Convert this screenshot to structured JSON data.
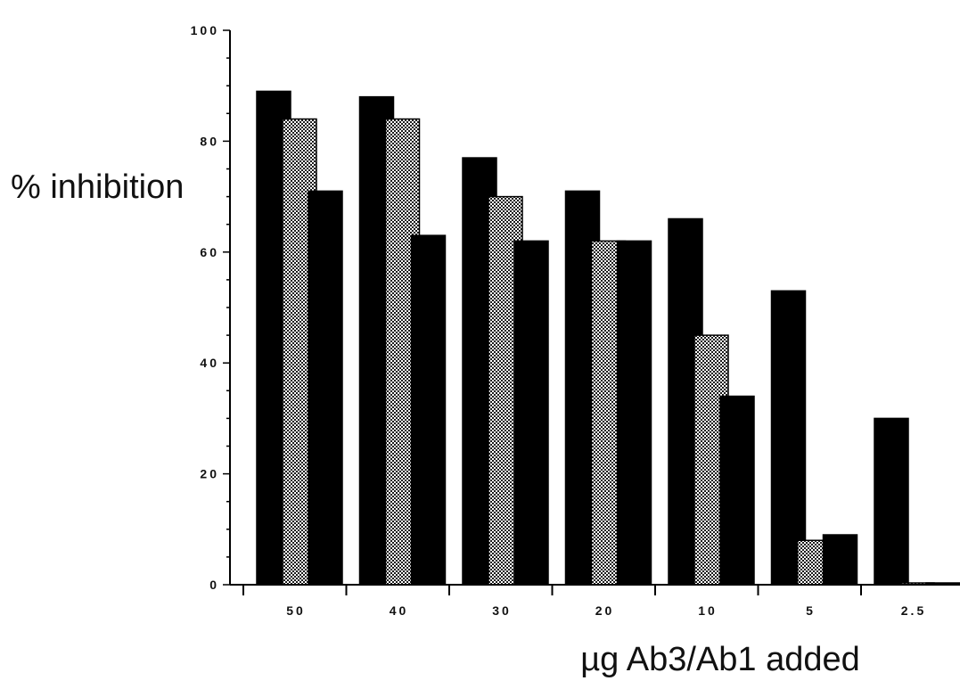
{
  "chart_data": {
    "type": "bar",
    "title": "",
    "xlabel": "µg Ab3/Ab1 added",
    "ylabel": "% inhibition",
    "categories": [
      "50",
      "40",
      "30",
      "20",
      "10",
      "5",
      "2.5"
    ],
    "ylim": [
      0,
      100
    ],
    "yticks": [
      "0",
      "20",
      "40",
      "60",
      "80",
      "100"
    ],
    "grid": false,
    "legend": "none",
    "series": [
      {
        "pattern": "solid",
        "color": "#000000",
        "values": [
          89,
          88,
          77,
          71,
          66,
          53,
          30
        ]
      },
      {
        "pattern": "dotted",
        "color": "#8c8c8c",
        "values": [
          84,
          84,
          70,
          62,
          45,
          8,
          0
        ]
      },
      {
        "pattern": "solid",
        "color": "#000000",
        "values": [
          71,
          63,
          62,
          62,
          34,
          9,
          0
        ]
      }
    ]
  }
}
